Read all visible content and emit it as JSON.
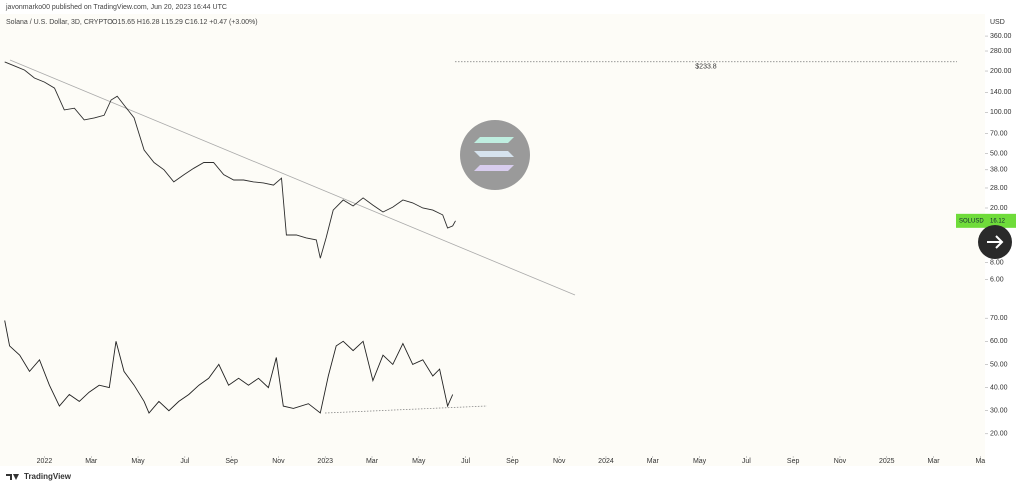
{
  "header": "javonmarko00 published on TradingView.com, Jun 20, 2023 16:44 UTC",
  "footer": "TradingView",
  "chart_data": [
    {
      "type": "line",
      "title": "Solana / U.S. Dollar, 3D, CRYPTO",
      "subtitle": "O15.65 H16.28 L15.29 C16.12 +0.47 (+3.00%)",
      "y_label": "USD",
      "log_scale": true,
      "xlim": [
        -1.9,
        40.2
      ],
      "ylim": [
        4.26,
        513
      ],
      "yticks": [
        {
          "value": 360,
          "label": "360.00"
        },
        {
          "value": 280,
          "label": "280.00"
        },
        {
          "value": 200,
          "label": "200.00"
        },
        {
          "value": 140,
          "label": "140.00"
        },
        {
          "value": 100,
          "label": "100.00"
        },
        {
          "value": 70,
          "label": "70.00"
        },
        {
          "value": 50,
          "label": "50.00"
        },
        {
          "value": 38,
          "label": "38.00"
        },
        {
          "value": 28,
          "label": "28.00"
        },
        {
          "value": 20,
          "label": "20.00"
        },
        {
          "value": 8,
          "label": "8.00"
        },
        {
          "value": 6,
          "label": "6.00"
        }
      ],
      "levels": [
        {
          "value": 233.8,
          "label": "$233.8"
        }
      ],
      "x": [
        -1.7,
        -1.28,
        -0.85,
        -0.43,
        0,
        0.43,
        0.85,
        1.28,
        1.7,
        2.13,
        2.55,
        2.85,
        3.11,
        3.4,
        3.83,
        4.26,
        4.68,
        5.11,
        5.53,
        5.96,
        6.38,
        6.81,
        7.23,
        7.66,
        8.09,
        8.51,
        8.94,
        9.36,
        9.79,
        10.13,
        10.34,
        10.77,
        11.19,
        11.62,
        11.79,
        12.04,
        12.34,
        12.77,
        13.19,
        13.62,
        14.04,
        14.47,
        14.89,
        15.32,
        15.74,
        16.17,
        16.6,
        17.02,
        17.23,
        17.45,
        17.57
      ],
      "series": [
        {
          "name": "SOLUSD",
          "color": "#2e2e2e",
          "values": [
            233,
            218,
            203,
            178,
            166,
            150,
            104,
            107,
            88,
            91,
            95,
            123,
            131,
            113,
            91,
            53,
            43,
            38,
            31,
            35,
            39,
            43,
            43,
            35,
            32,
            32,
            31,
            30.5,
            29.4,
            33,
            12.7,
            12.7,
            12.1,
            11.7,
            8.6,
            12.1,
            19.3,
            22.9,
            20.7,
            23.7,
            21.0,
            18.7,
            20.3,
            22.9,
            21.8,
            20,
            19.3,
            17.8,
            14.3,
            14.8,
            16.12
          ]
        }
      ]
    },
    {
      "type": "line",
      "xlim": [
        -1.9,
        40.2
      ],
      "ylim": [
        13,
        75.7
      ],
      "yticks": [
        {
          "value": 70,
          "label": "70.00"
        },
        {
          "value": 60,
          "label": "60.00"
        },
        {
          "value": 50,
          "label": "50.00"
        },
        {
          "value": 40,
          "label": "40.00"
        },
        {
          "value": 30,
          "label": "30.00"
        },
        {
          "value": 20,
          "label": "20.00"
        }
      ],
      "xticks": [
        {
          "value": 0,
          "label": "2022"
        },
        {
          "value": 2,
          "label": "Mar"
        },
        {
          "value": 4,
          "label": "May"
        },
        {
          "value": 6,
          "label": "Jul"
        },
        {
          "value": 8,
          "label": "Sep"
        },
        {
          "value": 10,
          "label": "Nov"
        },
        {
          "value": 12,
          "label": "2023"
        },
        {
          "value": 14,
          "label": "Mar"
        },
        {
          "value": 16,
          "label": "May"
        },
        {
          "value": 18,
          "label": "Jul"
        },
        {
          "value": 20,
          "label": "Sep"
        },
        {
          "value": 22,
          "label": "Nov"
        },
        {
          "value": 24,
          "label": "2024"
        },
        {
          "value": 26,
          "label": "Mar"
        },
        {
          "value": 28,
          "label": "May"
        },
        {
          "value": 30,
          "label": "Jul"
        },
        {
          "value": 32,
          "label": "Sep"
        },
        {
          "value": 34,
          "label": "Nov"
        },
        {
          "value": 36,
          "label": "2025"
        },
        {
          "value": 38,
          "label": "Mar"
        },
        {
          "value": 40,
          "label": "Ma"
        }
      ],
      "x": [
        -1.7,
        -1.49,
        -1.06,
        -0.64,
        -0.21,
        0.21,
        0.64,
        1.06,
        1.49,
        1.91,
        2.34,
        2.77,
        3.06,
        3.4,
        3.83,
        4.26,
        4.47,
        4.89,
        5.32,
        5.74,
        6.17,
        6.6,
        7.02,
        7.45,
        7.87,
        8.3,
        8.72,
        9.15,
        9.57,
        9.91,
        10.21,
        10.64,
        11.28,
        11.79,
        12.13,
        12.47,
        12.77,
        13.19,
        13.62,
        14.04,
        14.47,
        14.89,
        15.32,
        15.74,
        16.17,
        16.6,
        16.89,
        17.23,
        17.45
      ],
      "series": [
        {
          "color": "#222222",
          "values": [
            69,
            58,
            54,
            47,
            52,
            41,
            32,
            37,
            34,
            38,
            41,
            40,
            60,
            47,
            41,
            34,
            29,
            34,
            30,
            34,
            37,
            41,
            44,
            50,
            41,
            44,
            41,
            44,
            40,
            53,
            32,
            31,
            33,
            29,
            45,
            58,
            60,
            56,
            60,
            43,
            54,
            50,
            59,
            50,
            52,
            45,
            48,
            32,
            37
          ]
        }
      ]
    }
  ]
}
